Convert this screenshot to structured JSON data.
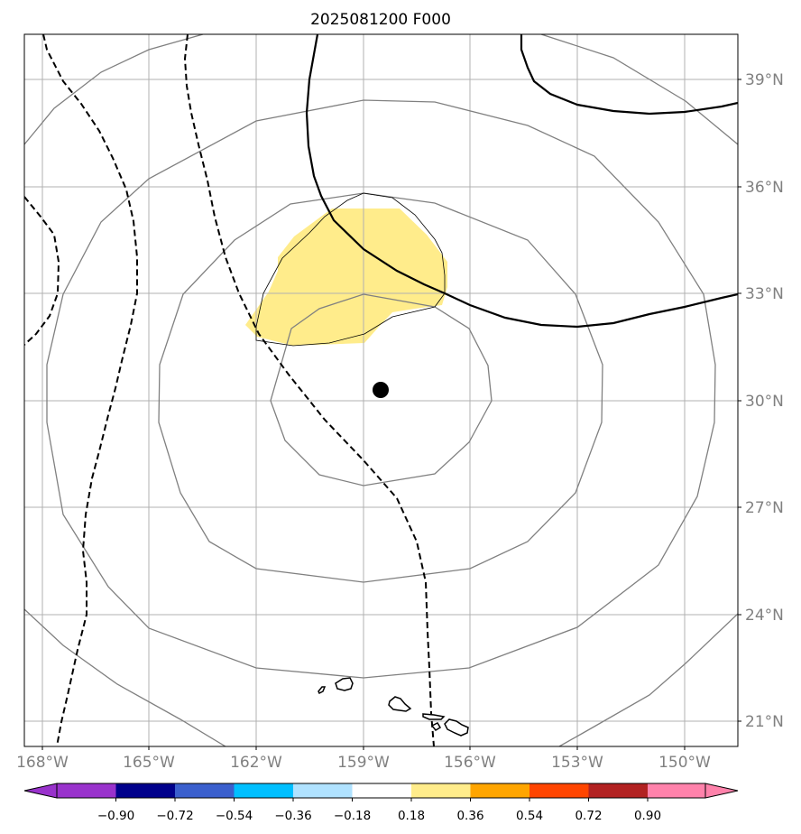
{
  "title": "2025081200 F000",
  "lat_labels": [
    "39°N",
    "36°N",
    "33°N",
    "30°N",
    "27°N",
    "24°N",
    "21°N"
  ],
  "lon_labels": [
    "168°W",
    "165°W",
    "162°W",
    "159°W",
    "156°W",
    "153°W",
    "150°W"
  ],
  "colorbar": {
    "ticks": [
      "−0.90",
      "−0.72",
      "−0.54",
      "−0.36",
      "−0.18",
      "0.18",
      "0.36",
      "0.54",
      "0.72",
      "0.90"
    ],
    "colors": [
      "#9932cc",
      "#00008b",
      "#3a5fcd",
      "#00bfff",
      "#b0e2ff",
      "#ffffff",
      "#ffec8b",
      "#ffa500",
      "#ff4500",
      "#b22222",
      "#ff82ab"
    ]
  },
  "colors": {
    "grid": "#b0b0b0",
    "contour_gray": "#808080",
    "anomaly_fill": "#ffec8b",
    "center_marker": "#000000"
  }
}
